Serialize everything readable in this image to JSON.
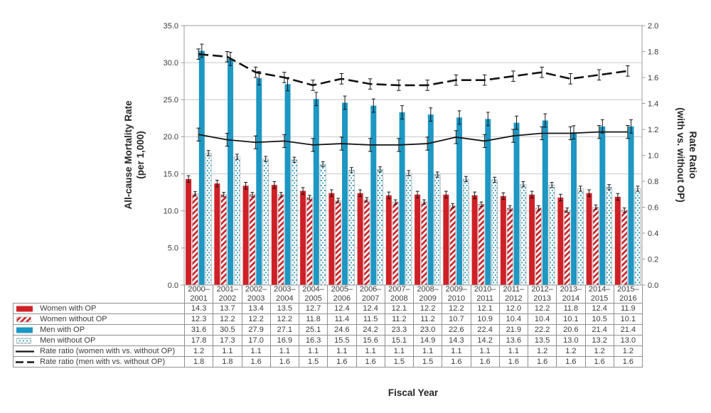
{
  "labels": {
    "x_axis_title": "Fiscal Year",
    "y_left_title_line1": "All-cause Mortality Rate",
    "y_left_title_line2": "(per 1,000)",
    "y_right_title_line1": "Rate Ratio",
    "y_right_title_line2": "(with vs. without OP)"
  },
  "colors": {
    "women_bar": "#ce2127",
    "men_bar": "#1e97c2",
    "ratio_line": "#141414",
    "gridline": "#c8c8c8",
    "plot_border": "#9b9b9b",
    "table_border": "#8f8f8f",
    "pattern_outline": "#a9a9a9",
    "text": "#3c3c3c"
  },
  "chart_data": {
    "type": "bar",
    "subtype": "grouped-bars-with-dual-axis-ratio-lines",
    "title": "",
    "xlabel": "Fiscal Year",
    "grid": "horizontal",
    "error_bars": true,
    "legend_position": "table-left-below",
    "y_left_axis": {
      "label": "All-cause Mortality Rate (per 1,000)",
      "min": 0,
      "max": 35,
      "step": 5
    },
    "y_right_axis": {
      "label": "Rate Ratio (with vs. without OP)",
      "min": 0,
      "max": 2,
      "step": 0.2
    },
    "categories": [
      "2000–2001",
      "2001–2002",
      "2002–2003",
      "2003–2004",
      "2004–2005",
      "2005–2006",
      "2006–2007",
      "2007–2008",
      "2008–2009",
      "2009–2010",
      "2010–2011",
      "2011–2012",
      "2012–2013",
      "2013–2014",
      "2014–2015",
      "2015–2016"
    ],
    "series": [
      {
        "name": "Women with OP",
        "type": "bar",
        "style": "solid-red",
        "axis": "left",
        "err": 0.45,
        "values": [
          14.3,
          13.7,
          13.4,
          13.5,
          12.7,
          12.4,
          12.4,
          12.1,
          12.2,
          12.2,
          12.1,
          12.0,
          12.2,
          11.8,
          12.4,
          11.9
        ]
      },
      {
        "name": "Women without OP",
        "type": "bar",
        "style": "hatched-red",
        "axis": "left",
        "err": 0.3,
        "values": [
          12.3,
          12.2,
          12.2,
          12.2,
          11.8,
          11.4,
          11.5,
          11.2,
          11.2,
          10.7,
          10.9,
          10.4,
          10.4,
          10.1,
          10.5,
          10.1
        ]
      },
      {
        "name": "Men with OP",
        "type": "bar",
        "style": "solid-blue",
        "axis": "left",
        "err": 0.9,
        "values": [
          31.6,
          30.5,
          27.9,
          27.1,
          25.1,
          24.6,
          24.2,
          23.3,
          23.0,
          22.6,
          22.4,
          21.9,
          22.2,
          20.6,
          21.4,
          21.4
        ]
      },
      {
        "name": "Men without OP",
        "type": "bar",
        "style": "dotted-blue",
        "axis": "left",
        "err": 0.35,
        "values": [
          17.8,
          17.3,
          17.0,
          16.9,
          16.3,
          15.5,
          15.6,
          15.1,
          14.9,
          14.3,
          14.2,
          13.6,
          13.5,
          13.0,
          13.2,
          13.0
        ]
      },
      {
        "name": "Rate ratio (women with vs. without OP)",
        "type": "line",
        "style": "solid-black",
        "axis": "right",
        "err": 0.05,
        "values": [
          1.2,
          1.1,
          1.1,
          1.1,
          1.1,
          1.1,
          1.1,
          1.1,
          1.1,
          1.1,
          1.1,
          1.1,
          1.2,
          1.2,
          1.2,
          1.2
        ],
        "plot_values": [
          1.16,
          1.12,
          1.1,
          1.11,
          1.08,
          1.09,
          1.08,
          1.08,
          1.09,
          1.14,
          1.11,
          1.15,
          1.17,
          1.17,
          1.18,
          1.18
        ]
      },
      {
        "name": "Rate ratio (men with vs. without OP)",
        "type": "line",
        "style": "dashed-black",
        "axis": "right",
        "err": 0.04,
        "values": [
          1.8,
          1.8,
          1.6,
          1.6,
          1.5,
          1.6,
          1.6,
          1.5,
          1.5,
          1.6,
          1.6,
          1.6,
          1.6,
          1.6,
          1.6,
          1.6
        ],
        "plot_values": [
          1.78,
          1.76,
          1.64,
          1.6,
          1.54,
          1.59,
          1.55,
          1.54,
          1.54,
          1.58,
          1.58,
          1.61,
          1.64,
          1.59,
          1.62,
          1.65
        ]
      }
    ]
  }
}
